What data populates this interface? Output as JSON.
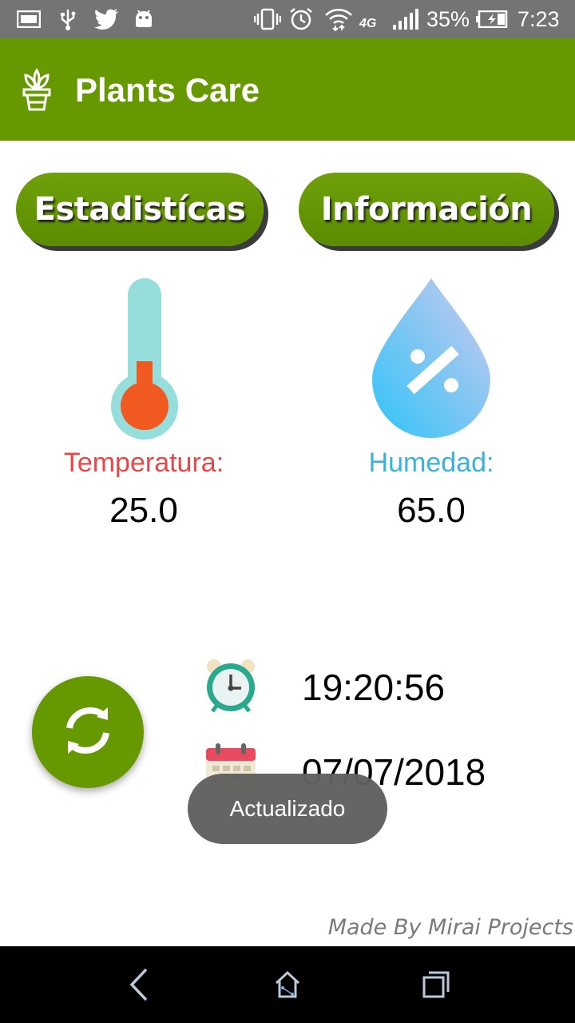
{
  "status_bar": {
    "battery_percent": "35%",
    "time": "7:23",
    "network_type": "4G",
    "icons": [
      "gallery-icon",
      "usb-icon",
      "twitter-icon",
      "android-icon",
      "vibrate-icon",
      "alarm-icon",
      "wifi-icon",
      "signal-icon",
      "battery-charging-icon"
    ]
  },
  "app_bar": {
    "title": "Plants Care",
    "logo_icon": "plant-pot-icon",
    "background": "#669900"
  },
  "buttons": {
    "stats_label": "Estadistícas",
    "info_label": "Información"
  },
  "sensors": {
    "temperature": {
      "label": "Temperatura:",
      "value": "25.0",
      "icon": "thermometer-icon",
      "color": "#e8474a"
    },
    "humidity": {
      "label": "Humedad:",
      "value": "65.0",
      "icon": "humidity-drop-icon",
      "color": "#3bb2d8"
    }
  },
  "reading": {
    "time": "19:20:56",
    "date": "07/07/2018",
    "time_icon": "alarm-clock-icon",
    "date_icon": "calendar-icon"
  },
  "refresh": {
    "icon": "refresh-icon"
  },
  "toast": {
    "message": "Actualizado"
  },
  "footer": {
    "credit": "Made By Mirai Projects"
  },
  "nav_bar": {
    "icons": [
      "back-icon",
      "home-icon",
      "recents-icon"
    ]
  }
}
